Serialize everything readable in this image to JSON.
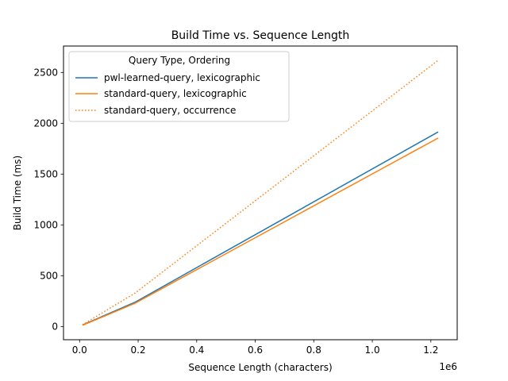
{
  "chart_data": {
    "type": "line",
    "title": "Build Time vs. Sequence Length",
    "xlabel": "Sequence Length (characters)",
    "ylabel": "Build Time (ms)",
    "x_offset_label": "1e6",
    "xlim": [
      -55000,
      1290000
    ],
    "ylim": [
      -130,
      2760
    ],
    "xticks": [
      0,
      200000,
      400000,
      600000,
      800000,
      1000000,
      1200000
    ],
    "xtick_labels": [
      "0.0",
      "0.2",
      "0.4",
      "0.6",
      "0.8",
      "1.0",
      "1.2"
    ],
    "yticks": [
      0,
      500,
      1000,
      1500,
      2000,
      2500
    ],
    "ytick_labels": [
      "0",
      "500",
      "1000",
      "1500",
      "2000",
      "2500"
    ],
    "grid": false,
    "legend": {
      "title": "Query Type, Ordering",
      "placement": "top-left"
    },
    "series": [
      {
        "name": "pwl-learned-query, lexicographic",
        "color": "#1f77b4",
        "dash": "solid",
        "x": [
          10000,
          190000,
          1225000
        ],
        "y": [
          15,
          240,
          1915
        ]
      },
      {
        "name": "standard-query, lexicographic",
        "color": "#ff7f0e",
        "dash": "solid",
        "x": [
          10000,
          190000,
          1225000
        ],
        "y": [
          12,
          230,
          1855
        ]
      },
      {
        "name": "standard-query, occurrence",
        "color": "#ff7f0e",
        "dash": "dotted",
        "x": [
          10000,
          190000,
          1225000
        ],
        "y": [
          18,
          330,
          2620
        ]
      }
    ]
  }
}
